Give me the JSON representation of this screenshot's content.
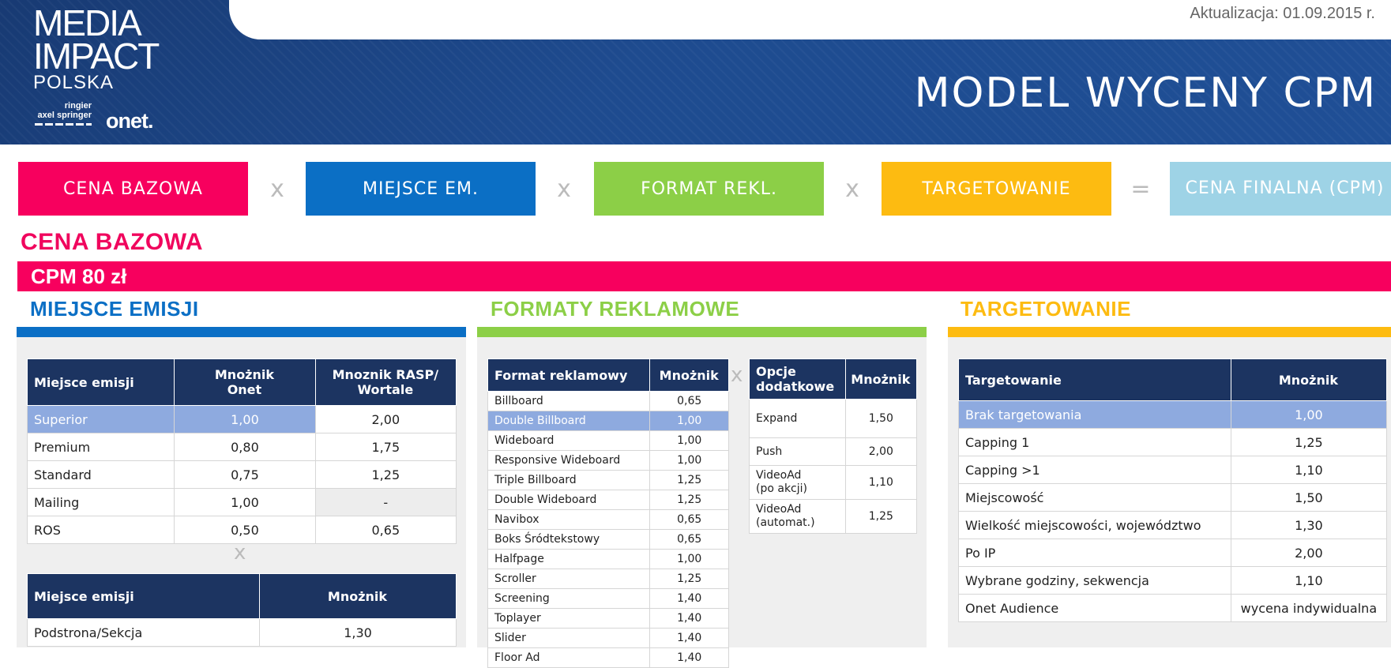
{
  "header": {
    "update": "Aktualizacja: 01.09.2015 r.",
    "logo": {
      "line1": "MEDIA",
      "line2": "IMPACT",
      "line3": "POLSKA",
      "ringier": "ringier",
      "axel": "axel springer",
      "onet": "onet."
    },
    "title": "MODEL WYCENY CPM"
  },
  "formula": {
    "items": [
      {
        "label": "CENA BAZOWA",
        "color": "#f7005e"
      },
      {
        "label": "MIEJSCE EM.",
        "color": "#0b6fc5"
      },
      {
        "label": "FORMAT REKL.",
        "color": "#8ccf47"
      },
      {
        "label": "TARGETOWANIE",
        "color": "#fdbb11"
      },
      {
        "label": "CENA FINALNA (CPM)",
        "color": "#9ed3e6"
      }
    ],
    "operators": [
      "x",
      "x",
      "x",
      "="
    ]
  },
  "cena": {
    "heading": "CENA BAZOWA",
    "cpm": "CPM 80 zł"
  },
  "miejsce": {
    "title": "MIEJSCE EMISJI",
    "color": "#0b6fc5",
    "table1": {
      "headers": [
        "Miejsce emisji",
        "Mnożnik\nOnet",
        "Mnoznik RASP/\nWortale"
      ],
      "rows": [
        [
          "Superior",
          "1,00",
          "2,00"
        ],
        [
          "Premium",
          "0,80",
          "1,75"
        ],
        [
          "Standard",
          "0,75",
          "1,25"
        ],
        [
          "Mailing",
          "1,00",
          "-"
        ],
        [
          "ROS",
          "0,50",
          "0,65"
        ]
      ]
    },
    "operator": "x",
    "table2": {
      "headers": [
        "Miejsce emisji",
        "Mnożnik"
      ],
      "rows": [
        [
          "Podstrona/Sekcja",
          "1,30"
        ]
      ]
    }
  },
  "formaty": {
    "title": "FORMATY REKLAMOWE",
    "color": "#8ccf47",
    "table1": {
      "headers": [
        "Format reklamowy",
        "Mnożnik"
      ],
      "rows": [
        [
          "Billboard",
          "0,65"
        ],
        [
          "Double Billboard",
          "1,00"
        ],
        [
          "Wideboard",
          "1,00"
        ],
        [
          "Responsive Wideboard",
          "1,00"
        ],
        [
          "Triple Billboard",
          "1,25"
        ],
        [
          "Double Wideboard",
          "1,25"
        ],
        [
          "Navibox",
          "0,65"
        ],
        [
          "Boks Śródtekstowy",
          "0,65"
        ],
        [
          "Halfpage",
          "1,00"
        ],
        [
          "Scroller",
          "1,25"
        ],
        [
          "Screening",
          "1,40"
        ],
        [
          "Toplayer",
          "1,40"
        ],
        [
          "Slider",
          "1,40"
        ],
        [
          "Floor Ad",
          "1,40"
        ]
      ]
    },
    "operator": "x",
    "table2": {
      "headers": [
        "Opcje\ndodatkowe",
        "Mnożnik"
      ],
      "rows": [
        [
          "Expand",
          "1,50"
        ],
        [
          "Push",
          "2,00"
        ],
        [
          "VideoAd\n(po akcji)",
          "1,10"
        ],
        [
          "VideoAd\n(automat.)",
          "1,25"
        ]
      ]
    }
  },
  "targetowanie": {
    "title": "TARGETOWANIE",
    "color": "#fdbb11",
    "table": {
      "headers": [
        "Targetowanie",
        "Mnożnik"
      ],
      "rows": [
        [
          "Brak targetowania",
          "1,00"
        ],
        [
          "Capping 1",
          "1,25"
        ],
        [
          "Capping >1",
          "1,10"
        ],
        [
          "Miejscowość",
          "1,50"
        ],
        [
          "Wielkość miejscowości, województwo",
          "1,30"
        ],
        [
          "Po IP",
          "2,00"
        ],
        [
          "Wybrane godziny, sekwencja",
          "1,10"
        ],
        [
          "Onet Audience",
          "wycena indywidualna"
        ]
      ]
    }
  }
}
